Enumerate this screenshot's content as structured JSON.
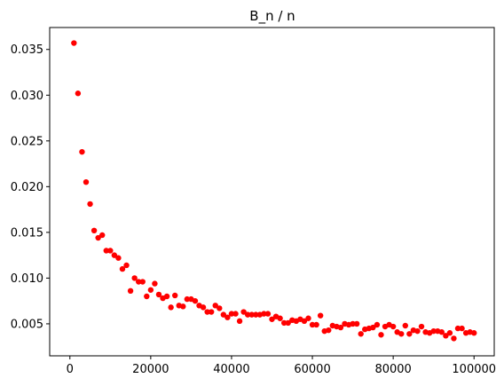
{
  "chart_data": {
    "type": "scatter",
    "title": "B_n / n",
    "xlabel": "",
    "ylabel": "",
    "xlim": [
      -5000,
      105000
    ],
    "ylim": [
      0.0015,
      0.0374
    ],
    "xticks": [
      0,
      20000,
      40000,
      60000,
      80000,
      100000
    ],
    "xtick_labels": [
      "0",
      "20000",
      "40000",
      "60000",
      "80000",
      "100000"
    ],
    "yticks": [
      0.005,
      0.01,
      0.015,
      0.02,
      0.025,
      0.03,
      0.035
    ],
    "ytick_labels": [
      "0.005",
      "0.010",
      "0.015",
      "0.020",
      "0.025",
      "0.030",
      "0.035"
    ],
    "grid": false,
    "marker_color": "#ff0000",
    "series": [
      {
        "x": [
          1000,
          2000,
          3000,
          4000,
          5000,
          6000,
          7000,
          8000,
          9000,
          10000,
          11000,
          12000,
          13000,
          14000,
          15000,
          16000,
          17000,
          18000,
          19000,
          20000,
          21000,
          22000,
          23000,
          24000,
          25000,
          26000,
          27000,
          28000,
          29000,
          30000,
          31000,
          32000,
          33000,
          34000,
          35000,
          36000,
          37000,
          38000,
          39000,
          40000,
          41000,
          42000,
          43000,
          44000,
          45000,
          46000,
          47000,
          48000,
          49000,
          50000,
          51000,
          52000,
          53000,
          54000,
          55000,
          56000,
          57000,
          58000,
          59000,
          60000,
          61000,
          62000,
          63000,
          64000,
          65000,
          66000,
          67000,
          68000,
          69000,
          70000,
          71000,
          72000,
          73000,
          74000,
          75000,
          76000,
          77000,
          78000,
          79000,
          80000,
          81000,
          82000,
          83000,
          84000,
          85000,
          86000,
          87000,
          88000,
          89000,
          90000,
          91000,
          92000,
          93000,
          94000,
          95000,
          96000,
          97000,
          98000,
          99000,
          100000
        ],
        "y": [
          0.0357,
          0.0302,
          0.0238,
          0.0205,
          0.0181,
          0.0152,
          0.0144,
          0.0147,
          0.013,
          0.013,
          0.0125,
          0.0122,
          0.011,
          0.0114,
          0.0086,
          0.01,
          0.0096,
          0.0096,
          0.008,
          0.0087,
          0.0094,
          0.0082,
          0.0078,
          0.008,
          0.0068,
          0.0081,
          0.007,
          0.0069,
          0.0077,
          0.0077,
          0.0075,
          0.007,
          0.0068,
          0.0063,
          0.0063,
          0.007,
          0.0067,
          0.006,
          0.0057,
          0.0061,
          0.0061,
          0.0053,
          0.0063,
          0.006,
          0.006,
          0.006,
          0.006,
          0.0061,
          0.0061,
          0.0055,
          0.0058,
          0.0056,
          0.0051,
          0.0051,
          0.0054,
          0.0053,
          0.0055,
          0.0053,
          0.0056,
          0.0049,
          0.0049,
          0.0059,
          0.0042,
          0.0043,
          0.0048,
          0.0047,
          0.0046,
          0.005,
          0.0049,
          0.005,
          0.005,
          0.0039,
          0.0044,
          0.0045,
          0.0046,
          0.0049,
          0.0038,
          0.0047,
          0.0049,
          0.0047,
          0.0041,
          0.0039,
          0.0048,
          0.0039,
          0.0043,
          0.0042,
          0.0047,
          0.0041,
          0.004,
          0.0042,
          0.0042,
          0.0041,
          0.0037,
          0.004,
          0.0034,
          0.0045,
          0.0045,
          0.004,
          0.0041,
          0.004
        ]
      }
    ]
  }
}
